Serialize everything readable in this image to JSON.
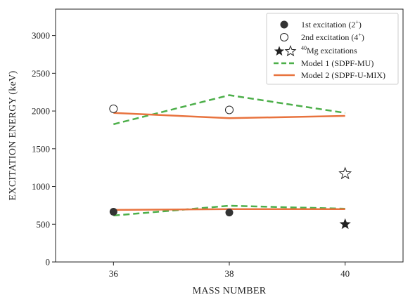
{
  "chart_data": {
    "type": "line",
    "xlabel": "MASS NUMBER",
    "ylabel": "EXCITATION ENERGY (keV)",
    "xlim": [
      35,
      41
    ],
    "ylim": [
      0,
      3350
    ],
    "xticks": [
      36,
      38,
      40
    ],
    "yticks": [
      0,
      500,
      1000,
      1500,
      2000,
      2500,
      3000
    ],
    "grid": false,
    "legend_position": "top-right",
    "points": [
      {
        "name": "1st excitation (2⁺)",
        "marker": "filled-circle",
        "x": [
          36,
          38
        ],
        "y": [
          665,
          655
        ]
      },
      {
        "name": "2nd excitation (4⁺)",
        "marker": "open-circle",
        "x": [
          36,
          38
        ],
        "y": [
          2030,
          2015
        ]
      }
    ],
    "mg40": {
      "name": "⁴⁰Mg excitations",
      "name_sup": "40",
      "name_main": "Mg excitations",
      "filled_star": {
        "x": 40,
        "y": 500
      },
      "open_star": {
        "x": 40,
        "y": 1170
      }
    },
    "models": [
      {
        "name": "Model 1 (SDPF-MU)",
        "color": "#4daf4a",
        "dash": true,
        "lines": [
          {
            "x": [
              36,
              38,
              40
            ],
            "y": [
              615,
              745,
              705
            ]
          },
          {
            "x": [
              36,
              38,
              40
            ],
            "y": [
              1825,
              2210,
              1975
            ]
          }
        ]
      },
      {
        "name": "Model 2 (SDPF-U-MIX)",
        "color": "#e8733e",
        "dash": false,
        "lines": [
          {
            "x": [
              36,
              38,
              40
            ],
            "y": [
              690,
              700,
              700
            ]
          },
          {
            "x": [
              36,
              38,
              40
            ],
            "y": [
              1975,
              1905,
              1935
            ]
          }
        ]
      }
    ],
    "legend": {
      "first_main": "1st excitation (2",
      "first_sup": "+",
      "first_close": ")",
      "second_main": "2nd excitation (4",
      "second_sup": "+",
      "second_close": ")"
    }
  }
}
